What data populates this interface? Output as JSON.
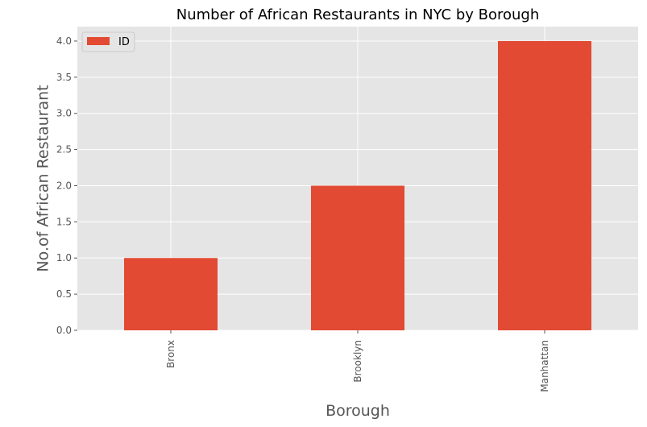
{
  "chart_data": {
    "type": "bar",
    "title": "Number of African Restaurants in NYC by Borough",
    "xlabel": "Borough",
    "ylabel": "No.of African Restaurant",
    "categories": [
      "Bronx",
      "Brooklyn",
      "Manhattan"
    ],
    "series": [
      {
        "name": "ID",
        "values": [
          1,
          2,
          4
        ],
        "color": "#E24A33"
      }
    ],
    "ylim": [
      0,
      4.2
    ],
    "yticks": [
      "0.0",
      "0.5",
      "1.0",
      "1.5",
      "2.0",
      "2.5",
      "3.0",
      "3.5",
      "4.0"
    ],
    "grid": true,
    "legend_position": "top-left",
    "background_color": "#E5E5E5",
    "grid_color": "#FFFFFF"
  }
}
